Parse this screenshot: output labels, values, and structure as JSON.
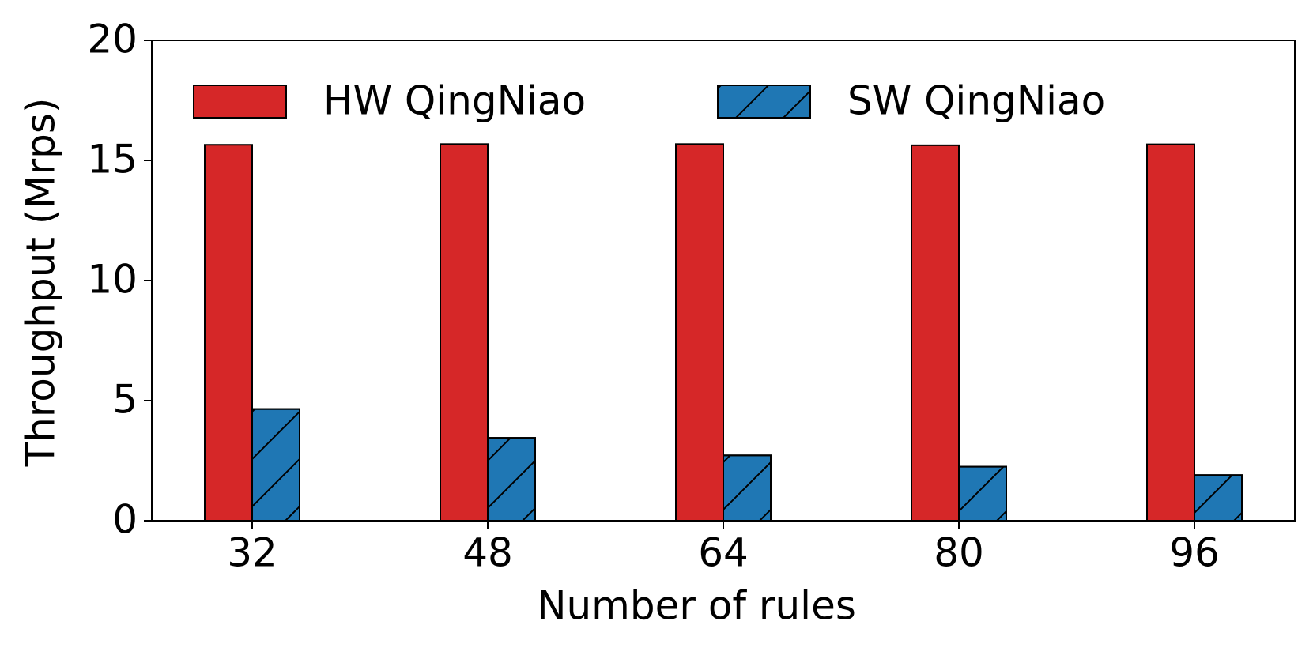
{
  "chart_data": {
    "type": "bar",
    "xlabel": "Number of rules",
    "ylabel": "Throughput (Mrps)",
    "categories": [
      "32",
      "48",
      "64",
      "80",
      "96"
    ],
    "series": [
      {
        "name": "HW QingNiao",
        "color": "#d62728",
        "values": [
          15.65,
          15.68,
          15.68,
          15.63,
          15.67
        ]
      },
      {
        "name": "SW QingNiao",
        "color": "#1f77b4",
        "hatch": "/",
        "values": [
          4.65,
          3.45,
          2.72,
          2.25,
          1.9
        ]
      }
    ],
    "ylim": [
      0,
      20
    ],
    "yticks": [
      0,
      5,
      10,
      15,
      20
    ],
    "legend": "upper left"
  }
}
